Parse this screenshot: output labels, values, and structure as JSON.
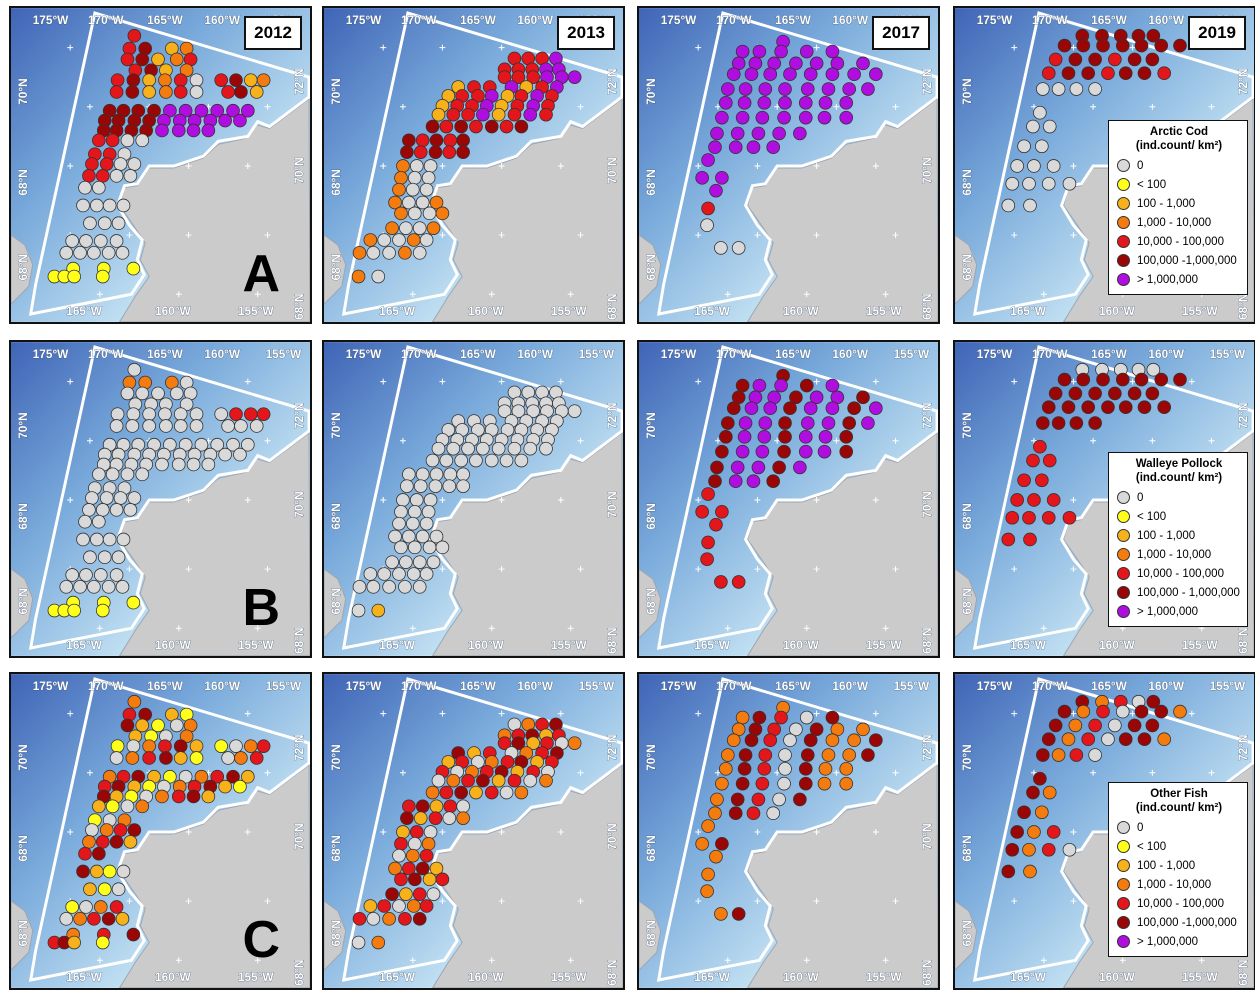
{
  "years": [
    "2012",
    "2013",
    "2017",
    "2019"
  ],
  "row_letters": [
    "A",
    "B",
    "C",
    "",
    ""
  ],
  "map": {
    "top_labels": [
      "175°W",
      "170°W",
      "165°W",
      "160°W",
      "155°W"
    ],
    "bottom_labels": [
      "165°W",
      "160°W",
      "155°W"
    ],
    "left_labels": [
      "70°N",
      "68°N",
      "68°N"
    ],
    "right_labels": [
      "72°N",
      "70°N",
      "68°N"
    ]
  },
  "legends": [
    {
      "title1": "Arctic Cod",
      "title2": "(ind.count/ km²)",
      "items": [
        "0",
        "< 100",
        "100 - 1,000",
        "1,000 - 10,000",
        "10,000 - 100,000",
        "100,000 -1,000,000",
        "> 1,000,000"
      ]
    },
    {
      "title1": "Walleye Pollock",
      "title2": "(ind.count/ km²)",
      "items": [
        "0",
        "< 100",
        "100 - 1,000",
        "1,000 - 10,000",
        "10,000 - 100,000",
        "100,000 - 1,000,000",
        "> 1,000,000"
      ]
    },
    {
      "title1": "Other Fish",
      "title2": "(ind.count/ km²)",
      "items": [
        "0",
        "< 100",
        "100 - 1,000",
        "1,000 - 10,000",
        "10,000 - 100,000",
        "100,000 -1,000,000",
        "> 1,000,000"
      ]
    }
  ],
  "class_colors": [
    "#d9d9d9",
    "#ffff1a",
    "#f7b11b",
    "#f47c0f",
    "#e3161b",
    "#9a0606",
    "#b00ee0"
  ],
  "colors": {
    "ocean_deep": "#3f64b6",
    "ocean_mid": "#79aadb",
    "shelf": "#c4e2f3",
    "land": "#cbcbcb",
    "outline": "#ffffff"
  },
  "stations": {
    "s2012": [
      "4,0,4",
      "4,1,5",
      "4,2,6",
      "4,3,6",
      "3,0,8",
      "3,1,9",
      "3,2,10",
      "2,3,12",
      "2,4,13",
      "2,5,13",
      "1,3,15",
      "0,4,16",
      "0,5,16",
      "4,4,8",
      "5,5,9",
      "5,6,8",
      "4,7,9",
      "5,8,10",
      "4,9,11",
      "3,10,12",
      "2,11,13",
      "1,12,14",
      "6,9,6",
      "6,10,7",
      "7,11,7",
      "8,12,8",
      "9,0,12",
      "10,1,12",
      "11,2,12",
      "12,3,11",
      "13,4,11",
      "14,5,10"
    ],
    "s2013": [
      "4,0,4",
      "4,1,5",
      "4,2,6",
      "4,3,6",
      "3,0,8",
      "3,1,9",
      "3,2,10",
      "2,3,12",
      "2,4,13",
      "2,5,13",
      "1,3,15",
      "0,4,16",
      "0,5,16",
      "5,4,8",
      "6,5,9",
      "4,6,8",
      "5,7,9",
      "6,8,10",
      "5,9,11",
      "4,10,12",
      "3,11,13",
      "2,12,14",
      "7,9,6",
      "7,10,7",
      "8,11,7",
      "9,12,8",
      "10,0,12",
      "11,1,12",
      "12,2,12",
      "13,3,11",
      "14,4,11",
      "15,5,10"
    ],
    "s2017": [
      "0,0,2",
      "1,1,3",
      "2,2,3",
      "3,3,4",
      "4,4,4",
      "5,5,5",
      "6,6,5",
      "7,7,6",
      "8,8,7",
      "9,9,8",
      "10,10,9",
      "11,11,10",
      "12,12,11"
    ],
    "s2019": [
      "0,0,2",
      "1,1,3",
      "2,2,3",
      "3,3,4",
      "4,4,4",
      "5,5,5",
      "6,6,5",
      "7,7,6",
      "8,8,7",
      "9,9,8",
      "10,10,9",
      "11,11,10",
      "12,12,11"
    ]
  }
}
